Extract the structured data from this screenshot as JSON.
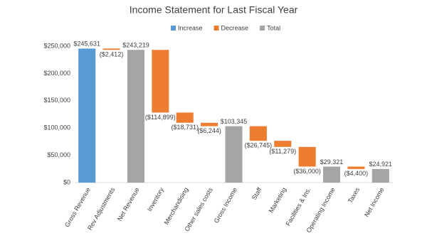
{
  "chart_data": {
    "type": "waterfall",
    "title": "Income Statement for Last Fiscal Year",
    "legend": [
      {
        "name": "Increase",
        "color": "#5b9bd5"
      },
      {
        "name": "Decrease",
        "color": "#ed7d31"
      },
      {
        "name": "Total",
        "color": "#a5a5a5"
      }
    ],
    "categories": [
      "Gross Revenue",
      "Rev Adjustments",
      "Net Revenue",
      "Inventory",
      "Merchandising",
      "Other sales costs",
      "Gross Income",
      "Staff",
      "Marketing",
      "Facilities & Ins.",
      "Operating Income",
      "Taxes",
      "Net Income"
    ],
    "values": [
      245631,
      -2412,
      243219,
      -114899,
      -18731,
      -6244,
      103345,
      -26745,
      -11279,
      -36000,
      29321,
      -4400,
      24921
    ],
    "value_labels": [
      "$245,631",
      "($2,412)",
      "$243,219",
      "($114,899)",
      "($18,731)",
      "($6,244)",
      "$103,345",
      "($26,745)",
      "($11,279)",
      "($36,000)",
      "$29,321",
      "($4,400)",
      "$24,921"
    ],
    "kind": [
      0,
      1,
      2,
      1,
      1,
      1,
      2,
      1,
      1,
      1,
      2,
      1,
      2
    ],
    "ylim": [
      0,
      250000
    ],
    "yticks": [
      {
        "value": 0,
        "label": "$0"
      },
      {
        "value": 50000,
        "label": "$50,000"
      },
      {
        "value": 100000,
        "label": "$100,000"
      },
      {
        "value": 150000,
        "label": "$150,000"
      },
      {
        "value": 200000,
        "label": "$200,000"
      },
      {
        "value": 250000,
        "label": "$250,000"
      }
    ],
    "grid": false
  }
}
